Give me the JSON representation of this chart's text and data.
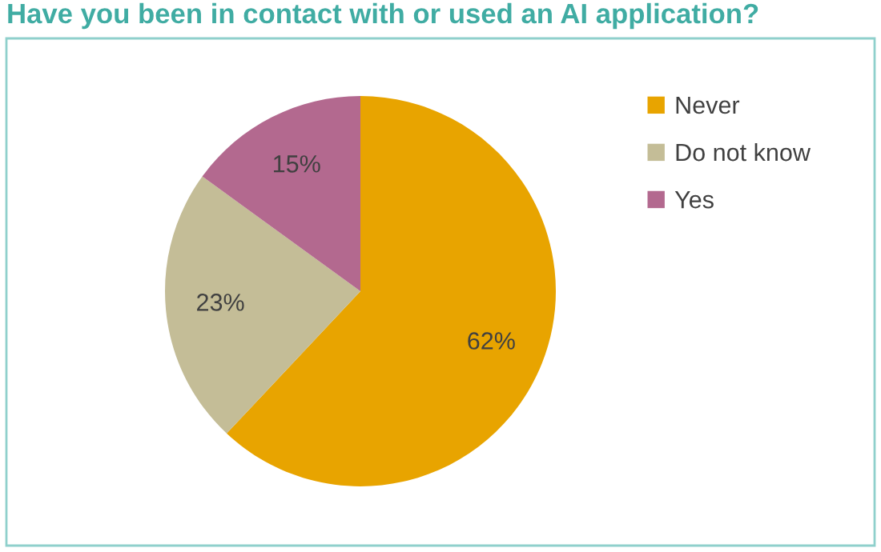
{
  "chart_data": {
    "type": "pie",
    "title": "Have you been in contact with or used an AI application?",
    "categories": [
      "Never",
      "Do not know",
      "Yes"
    ],
    "values": [
      62,
      23,
      15
    ],
    "colors": [
      "#e8a400",
      "#c4bd97",
      "#b3698f"
    ],
    "value_labels": [
      "62%",
      "23%",
      "15%"
    ],
    "legend": "right"
  }
}
